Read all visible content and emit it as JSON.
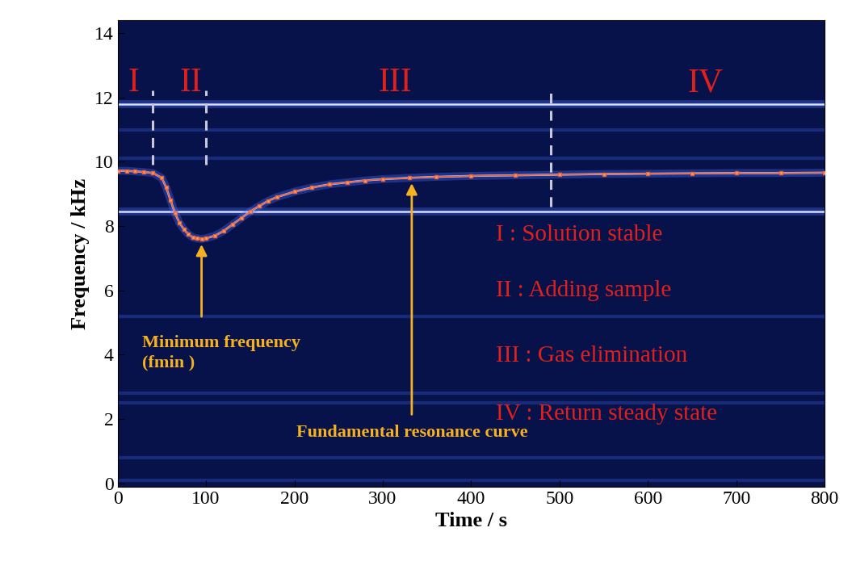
{
  "chart_data": {
    "type": "spectrogram",
    "xlabel": "Time / s",
    "ylabel": "Frequency / kHz",
    "xlim": [
      0,
      800
    ],
    "xticks": [
      0,
      100,
      200,
      300,
      400,
      500,
      600,
      700,
      800
    ],
    "ylim": [
      -0.1,
      14.4
    ],
    "yticks": [
      0,
      2,
      4,
      6,
      8,
      10,
      12,
      14
    ],
    "color": "#e8603c",
    "marker": "square",
    "x": [
      0,
      10,
      20,
      30,
      40,
      50,
      55,
      60,
      65,
      70,
      75,
      80,
      85,
      90,
      95,
      100,
      110,
      120,
      130,
      140,
      150,
      160,
      170,
      180,
      200,
      220,
      240,
      260,
      280,
      300,
      330,
      360,
      400,
      450,
      500,
      550,
      600,
      650,
      700,
      750,
      800
    ],
    "values": [
      9.72,
      9.72,
      9.7,
      9.68,
      9.65,
      9.5,
      9.2,
      8.8,
      8.4,
      8.1,
      7.9,
      7.75,
      7.65,
      7.62,
      7.6,
      7.62,
      7.7,
      7.85,
      8.05,
      8.25,
      8.45,
      8.62,
      8.78,
      8.9,
      9.07,
      9.2,
      9.3,
      9.36,
      9.42,
      9.46,
      9.5,
      9.53,
      9.56,
      9.58,
      9.6,
      9.62,
      9.63,
      9.64,
      9.65,
      9.65,
      9.66
    ],
    "bands": [
      11.8,
      8.45
    ],
    "faint_bands": [
      11.0,
      10.1,
      5.2,
      2.8,
      2.5,
      0.8,
      0.1
    ],
    "boundaries": [
      40,
      100,
      490
    ],
    "regions": [
      {
        "label": "I",
        "x": 12
      },
      {
        "label": "II",
        "x": 70
      },
      {
        "label": "III",
        "x": 295
      },
      {
        "label": "IV",
        "x": 645
      }
    ],
    "region_notes": [
      "I : Solution stable",
      "II : Adding sample",
      "III : Gas elimination",
      "IV : Return steady state"
    ],
    "annotations": {
      "minimum": "Minimum frequency\n(fmin )",
      "curve": "Fundamental resonance curve"
    }
  }
}
